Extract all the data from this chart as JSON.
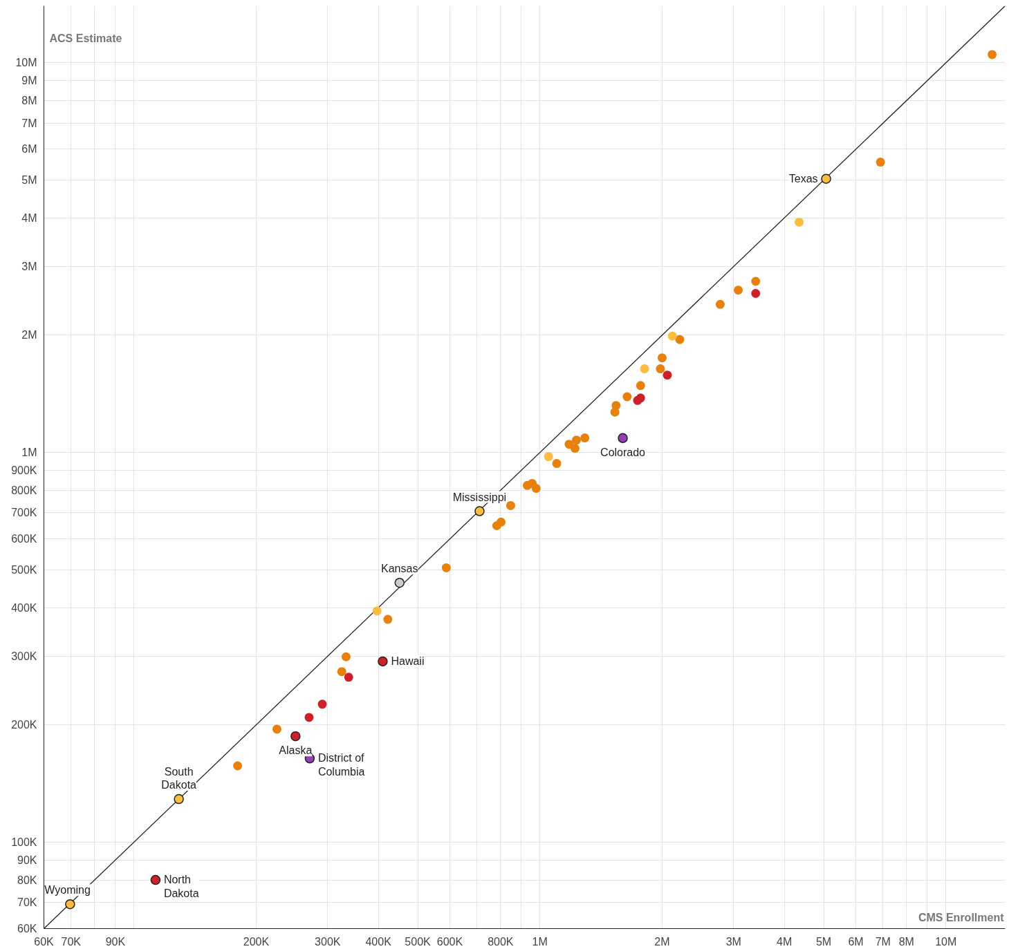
{
  "chart_data": {
    "type": "scatter",
    "xlabel": "CMS Enrollment",
    "ylabel": "ACS Estimate",
    "log": "xy",
    "grid": true,
    "marker": "circle",
    "xlim": [
      60000,
      14000000
    ],
    "ylim": [
      60000,
      14000000
    ],
    "xticks": [
      {
        "value": 60000,
        "label": "60K"
      },
      {
        "value": 70000,
        "label": "70K"
      },
      {
        "value": 80000,
        "label": null
      },
      {
        "value": 90000,
        "label": "90K"
      },
      {
        "value": 100000,
        "label": null
      },
      {
        "value": 200000,
        "label": "200K"
      },
      {
        "value": 300000,
        "label": "300K"
      },
      {
        "value": 400000,
        "label": "400K"
      },
      {
        "value": 500000,
        "label": "500K"
      },
      {
        "value": 600000,
        "label": "600K"
      },
      {
        "value": 700000,
        "label": null
      },
      {
        "value": 800000,
        "label": "800K"
      },
      {
        "value": 900000,
        "label": null
      },
      {
        "value": 1000000,
        "label": "1M"
      },
      {
        "value": 2000000,
        "label": "2M"
      },
      {
        "value": 3000000,
        "label": "3M"
      },
      {
        "value": 4000000,
        "label": "4M"
      },
      {
        "value": 5000000,
        "label": "5M"
      },
      {
        "value": 6000000,
        "label": "6M"
      },
      {
        "value": 7000000,
        "label": "7M"
      },
      {
        "value": 8000000,
        "label": "8M"
      },
      {
        "value": 9000000,
        "label": null
      },
      {
        "value": 10000000,
        "label": "10M"
      }
    ],
    "yticks": [
      {
        "value": 60000,
        "label": "60K"
      },
      {
        "value": 70000,
        "label": "70K"
      },
      {
        "value": 80000,
        "label": "80K"
      },
      {
        "value": 90000,
        "label": "90K"
      },
      {
        "value": 100000,
        "label": "100K"
      },
      {
        "value": 200000,
        "label": "200K"
      },
      {
        "value": 300000,
        "label": "300K"
      },
      {
        "value": 400000,
        "label": "400K"
      },
      {
        "value": 500000,
        "label": "500K"
      },
      {
        "value": 600000,
        "label": "600K"
      },
      {
        "value": 700000,
        "label": "700K"
      },
      {
        "value": 800000,
        "label": "800K"
      },
      {
        "value": 900000,
        "label": "900K"
      },
      {
        "value": 1000000,
        "label": "1M"
      },
      {
        "value": 2000000,
        "label": "2M"
      },
      {
        "value": 3000000,
        "label": "3M"
      },
      {
        "value": 4000000,
        "label": "4M"
      },
      {
        "value": 5000000,
        "label": "5M"
      },
      {
        "value": 6000000,
        "label": "6M"
      },
      {
        "value": 7000000,
        "label": "7M"
      },
      {
        "value": 8000000,
        "label": "8M"
      },
      {
        "value": 9000000,
        "label": "9M"
      },
      {
        "value": 10000000,
        "label": "10M"
      }
    ],
    "series": [
      {
        "type": "line",
        "marker": "none",
        "color": "#222222",
        "x": [
          60000,
          14000000
        ],
        "values": [
          60000,
          14000000
        ]
      },
      {
        "color": "#e8800c",
        "x": [
          13000000,
          6900000,
          3400000,
          3080000,
          2780000,
          2210000,
          2000000,
          1980000,
          1770000,
          1640000,
          1540000,
          1530000,
          1290000,
          1230000,
          1180000,
          1220000,
          1100000,
          957000,
          931000,
          979000,
          847000,
          802000,
          783000,
          588000,
          422000,
          333000,
          325000,
          225000,
          180000
        ],
        "values": [
          10500000,
          5560000,
          2750000,
          2610000,
          2400000,
          1950000,
          1750000,
          1640000,
          1485000,
          1390000,
          1320000,
          1270000,
          1090000,
          1076000,
          1050000,
          1025000,
          937000,
          833000,
          823000,
          809000,
          731000,
          663000,
          649000,
          506000,
          373000,
          299000,
          274000,
          195000,
          157000
        ]
      },
      {
        "color": "#fbbc3f",
        "x": [
          4350000,
          2120000,
          1810000,
          1050000,
          397000,
          5070000,
          710000,
          129000,
          69600
        ],
        "values": [
          3900000,
          1990000,
          1640000,
          976000,
          392000,
          5040000,
          707000,
          129000,
          69300
        ]
      },
      {
        "color": "#cc2128",
        "x": [
          3400000,
          2060000,
          1770000,
          1740000,
          338000,
          291000,
          270000,
          410000,
          250000,
          113000
        ],
        "values": [
          2560000,
          1580000,
          1380000,
          1360000,
          265000,
          226000,
          209000,
          291000,
          187000,
          80000
        ]
      },
      {
        "color": "#9240b8",
        "x": [
          1600000,
          271000
        ],
        "values": [
          1089000,
          164000
        ]
      },
      {
        "color": "#cccccc",
        "x": [
          451000
        ],
        "values": [
          463000
        ]
      }
    ],
    "annotations": [
      {
        "text": "Texas",
        "x": 5070000,
        "y": 5040000
      },
      {
        "text": "Mississippi",
        "x": 710000,
        "y": 707000
      },
      {
        "text": "Kansas",
        "x": 451000,
        "y": 463000
      },
      {
        "text": "Colorado",
        "x": 1600000,
        "y": 1089000
      },
      {
        "text": "Hawaii",
        "x": 410000,
        "y": 291000
      },
      {
        "text": "Alaska",
        "x": 250000,
        "y": 187000
      },
      {
        "text": "District of\nColumbia",
        "x": 271000,
        "y": 164000
      },
      {
        "text": "South\nDakota",
        "x": 129000,
        "y": 129000
      },
      {
        "text": "North\nDakota",
        "x": 113000,
        "y": 80000
      },
      {
        "text": "Wyoming",
        "x": 69600,
        "y": 69300
      }
    ]
  }
}
